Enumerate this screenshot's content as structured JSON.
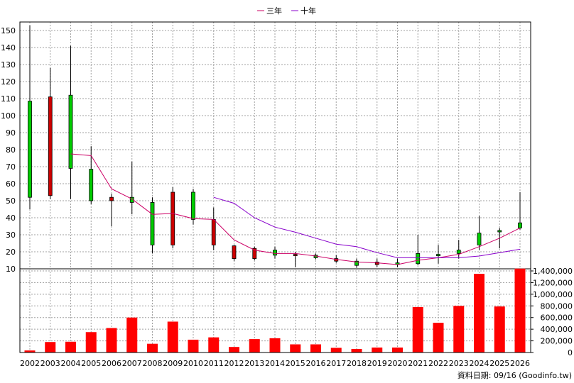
{
  "chart_data": {
    "type": "candlestick",
    "years": [
      "2002",
      "2003",
      "2004",
      "2005",
      "2006",
      "2007",
      "2008",
      "2009",
      "2010",
      "2011",
      "2012",
      "2013",
      "2014",
      "2015",
      "2016",
      "2017",
      "2018",
      "2019",
      "2020",
      "2021",
      "2022",
      "2023",
      "2024",
      "2025",
      "2026"
    ],
    "candles": [
      {
        "open": 52,
        "close": 108.5,
        "high": 153,
        "low": 45
      },
      {
        "open": 111,
        "close": 53,
        "high": 128,
        "low": 51
      },
      {
        "open": 69,
        "close": 112,
        "high": 141,
        "low": 51
      },
      {
        "open": 50,
        "close": 68.5,
        "high": 82,
        "low": 48
      },
      {
        "open": 52,
        "close": 50,
        "high": 54,
        "low": 35
      },
      {
        "open": 49,
        "close": 52,
        "high": 73,
        "low": 42
      },
      {
        "open": 24,
        "close": 49,
        "high": 52,
        "low": 19
      },
      {
        "open": 55,
        "close": 24,
        "high": 58,
        "low": 22
      },
      {
        "open": 39,
        "close": 55,
        "high": 57,
        "low": 36
      },
      {
        "open": 39,
        "close": 24,
        "high": 46,
        "low": 21
      },
      {
        "open": 23.5,
        "close": 16,
        "high": 24,
        "low": 14.5
      },
      {
        "open": 22,
        "close": 16,
        "high": 23,
        "low": 15
      },
      {
        "open": 18,
        "close": 21,
        "high": 23,
        "low": 16
      },
      {
        "open": 18.5,
        "close": 18,
        "high": 20,
        "low": 11
      },
      {
        "open": 16.5,
        "close": 18,
        "high": 19,
        "low": 15.5
      },
      {
        "open": 16,
        "close": 14.5,
        "high": 18,
        "low": 13.5
      },
      {
        "open": 12,
        "close": 14.5,
        "high": 16,
        "low": 10.5
      },
      {
        "open": 14,
        "close": 12.5,
        "high": 16,
        "low": 11
      },
      {
        "open": 12.5,
        "close": 13.5,
        "high": 16,
        "low": 11
      },
      {
        "open": 13,
        "close": 19,
        "high": 30,
        "low": 12
      },
      {
        "open": 18,
        "close": 18.5,
        "high": 24,
        "low": 13
      },
      {
        "open": 19,
        "close": 21,
        "high": 27,
        "low": 16
      },
      {
        "open": 24,
        "close": 31,
        "high": 41,
        "low": 21
      },
      {
        "open": 32,
        "close": 32.5,
        "high": 34,
        "low": 22
      },
      {
        "open": 34,
        "close": 37,
        "high": 55,
        "low": 33
      }
    ],
    "series": [
      {
        "name": "三年",
        "color": "#cc0066",
        "values": [
          null,
          null,
          77.5,
          76.5,
          57,
          51,
          42,
          42.5,
          39.5,
          39,
          27,
          21,
          19,
          19,
          17.5,
          15.5,
          14,
          13.5,
          12.5,
          15,
          16.5,
          18.5,
          23,
          28,
          34
        ]
      },
      {
        "name": "十年",
        "color": "#8800cc",
        "values": [
          null,
          null,
          null,
          null,
          null,
          null,
          null,
          null,
          null,
          52,
          48.5,
          40,
          34.5,
          31.5,
          28,
          24.5,
          23,
          19.5,
          16.5,
          16.5,
          16.5,
          16.5,
          17.5,
          19.5,
          21.5
        ]
      }
    ],
    "volume": [
      35000,
      180000,
      185000,
      350000,
      420000,
      600000,
      150000,
      530000,
      220000,
      260000,
      95000,
      230000,
      245000,
      140000,
      140000,
      80000,
      60000,
      85000,
      85000,
      780000,
      510000,
      800000,
      1350000,
      790000,
      1440000
    ],
    "price_axis": {
      "min": 10,
      "max": 155,
      "ticks": [
        10,
        20,
        30,
        40,
        50,
        60,
        70,
        80,
        90,
        100,
        110,
        120,
        130,
        140,
        150
      ]
    },
    "volume_axis": {
      "min": 0,
      "max": 1400000,
      "ticks": [
        0,
        200000,
        400000,
        600000,
        800000,
        1000000,
        1200000,
        1400000
      ],
      "tick_labels": [
        "0",
        "200,000",
        "400,000",
        "600,000",
        "800,000",
        "1,000,000",
        "1,200,000",
        "1,400,000"
      ]
    },
    "grid": true,
    "legend": "top-center"
  },
  "colors": {
    "up": "#00cc00",
    "down": "#cc0000",
    "volume": "#ff0000",
    "grid": "#a0a0a0"
  },
  "footer": {
    "date_label": "資料日期: 09/16 (Goodinfo.tw)"
  }
}
